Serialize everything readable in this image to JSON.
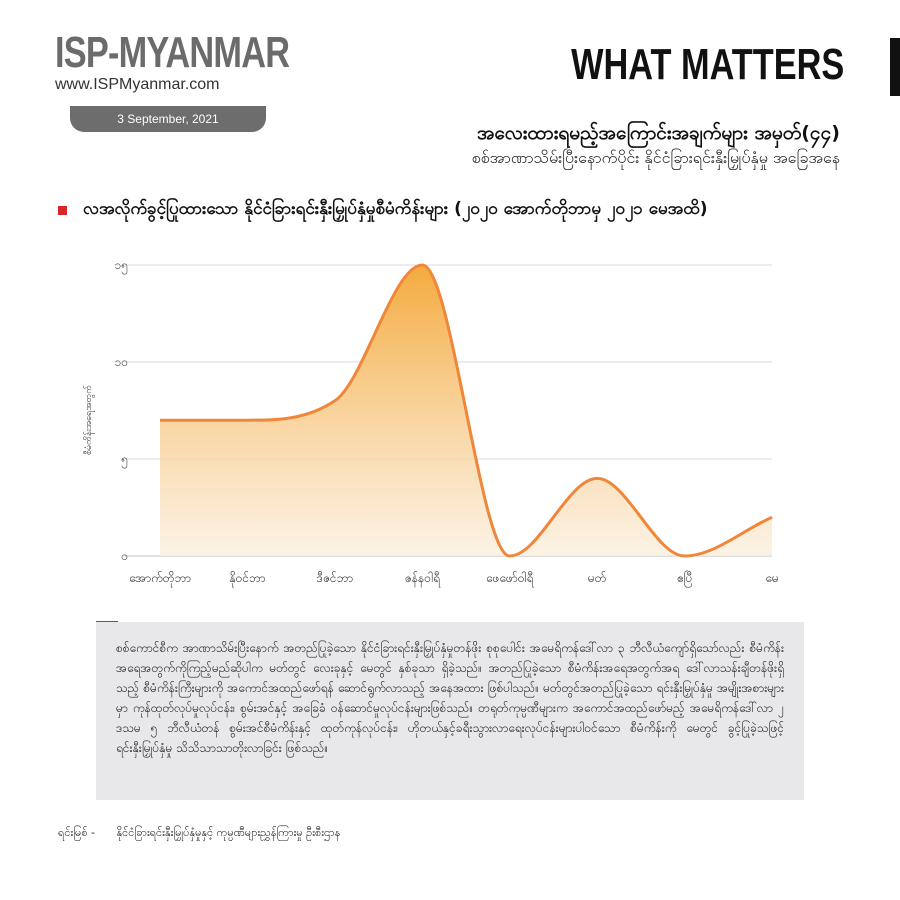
{
  "brand": {
    "name": "ISP-MYANMAR",
    "url": "www.ISPMyanmar.com",
    "date": "3 September, 2021"
  },
  "section_label": "WHAT MATTERS",
  "topic": {
    "title": "အလေးထားရမည့်အကြောင်းအချက်များ အမှတ်(၄၄)",
    "subtitle": "စစ်အာဏာသိမ်းပြီးနောက်ပိုင်း နိုင်ငံခြားရင်းနှီးမြှုပ်နှံမှု အခြေအနေ"
  },
  "chart_heading": "လအလိုက်ခွင့်ပြုထားသော နိုင်ငံခြားရင်းနှီးမြှုပ်နှံမှုစီမံကိန်းများ (၂၀၂၀ အောက်တိုဘာမှ ၂၀၂၁ မေအထိ)",
  "colors": {
    "accent": "#d62828",
    "line": "#f0863a",
    "fill_top": "#f4a93a",
    "fill_bottom": "#fbeedd"
  },
  "chart_data": {
    "type": "area",
    "categories": [
      "အောက်တိုဘာ",
      "နိုဝင်ဘာ",
      "ဒီဇင်ဘာ",
      "ဇန်နဝါရီ",
      "ဖေဖော်ဝါရီ",
      "မတ်",
      "ဧပြီ",
      "မေ"
    ],
    "values": [
      7,
      7,
      8,
      15,
      0,
      4,
      0,
      2
    ],
    "ylabel": "စီမံကိန်းအရေအတွက်",
    "yticks": [
      0,
      5,
      10,
      15
    ],
    "ytick_labels": [
      "၀",
      "၅",
      "၁၀",
      "၁၅"
    ],
    "ylim": [
      0,
      15
    ],
    "grid": true,
    "smooth": true
  },
  "description": "စစ်ကောင်စီက အာဏာသိမ်းပြီးနောက် အတည်ပြုခဲ့သော နိုင်ငံခြားရင်းနှီးမြှုပ်နှံမှုတန်ဖိုး စုစုပေါင်း အမေရိကန်ဒေါ်လာ ၃ ဘီလီယံကျော်ရှိသော်လည်း စီမံကိန်းအရေအတွက်ကိုကြည့်မည်ဆိုပါက မတ်တွင် လေးခုနှင့် မေတွင် နှစ်ခုသာ ရှိခဲ့သည်။ အတည်ပြုခဲ့သော စီမံကိန်းအရေအတွက်အရ ဒေါ်လာသန်းချီတန်ဖိုးရှိသည့် စီမံကိန်းကြီးများကို အကောင်အထည်ဖော်ရန် ဆောင်ရွက်လာသည့် အနေအထား ဖြစ်ပါသည်။ မတ်တွင်အတည်ပြုခဲ့သော ရင်းနှီးမြှုပ်နှံမှု အမျိုးအစားများမှာ ကုန်ထုတ်လုပ်မှုလုပ်ငန်း၊ စွမ်းအင်နှင့် အခြေခံ ဝန်ဆောင်မှုလုပ်ငန်းများဖြစ်သည်။ တရုတ်ကုမ္ပဏီများက အကောင်အထည်ဖော်မည့် အမေရိကန်ဒေါ်လာ ၂ ဒသမ ၅ ဘီလီယံတန် စွမ်းအင်စီမံကိန်းနှင့် ထုတ်ကုန်လုပ်ငန်း၊ ဟိုတယ်နှင့်ခရီးသွားလာရေးလုပ်ငန်းများပါဝင်သော စီမံကိန်းကို မေတွင် ခွင့်ပြုခဲ့သဖြင့် ရင်းနှီးမြှုပ်နှံမှု သိသိသာသာတိုးလာခြင်း ဖြစ်သည်။",
  "source": {
    "label": "ရင်းမြစ် -",
    "text": "နိုင်ငံခြားရင်းနှီးမြှုပ်နှံမှုနှင့် ကုမ္ပဏီများညွှန်ကြားမှု ဦးစီးဌာန"
  }
}
